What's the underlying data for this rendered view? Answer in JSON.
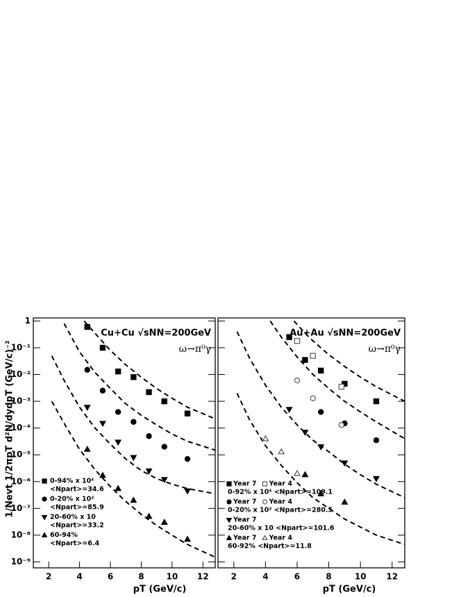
{
  "chart_data": [
    {
      "type": "scatter",
      "title": "Cu+Cu √sNN=200GeV",
      "subtitle": "ω→π⁰γ",
      "y_label": "1/Nevt 1/2πpT d²N/dydpT (GeV/c)⁻²",
      "x_label": "pT (GeV/c)",
      "log_y": true,
      "xlim": [
        1,
        12.8
      ],
      "ylim": [
        6e-10,
        1.3
      ],
      "xticks": [
        2,
        4,
        6,
        8,
        10,
        12
      ],
      "yticks": [
        {
          "value": 1e-09,
          "label": "10⁻⁹"
        },
        {
          "value": 1e-08,
          "label": "10⁻⁸"
        },
        {
          "value": 1e-07,
          "label": "10⁻⁷"
        },
        {
          "value": 1e-06,
          "label": "10⁻⁶"
        },
        {
          "value": 1e-05,
          "label": "10⁻⁵"
        },
        {
          "value": 0.0001,
          "label": "10⁻⁴"
        },
        {
          "value": 0.001,
          "label": "10⁻³"
        },
        {
          "value": 0.01,
          "label": "10⁻²"
        },
        {
          "value": 0.1,
          "label": "10⁻¹"
        },
        1
      ],
      "legend_groups": [
        {
          "lines": [
            "0-94% x 10⁴",
            "<Npart>=34.6"
          ]
        },
        {
          "lines": [
            "0-20% x 10²",
            "<Npart>=85.9"
          ]
        },
        {
          "lines": [
            "20-60% x 10",
            "<Npart>=33.2"
          ]
        },
        {
          "lines": [
            "60-94%",
            "<Npart>=6.4"
          ]
        }
      ],
      "series": [
        {
          "group": 0,
          "marker": "square",
          "filled": true,
          "color": "#000000",
          "x": [
            4.5,
            5.5,
            6.5,
            7.5,
            8.5,
            9.5,
            11
          ],
          "values": [
            0.6,
            0.1,
            0.013,
            0.008,
            0.0022,
            0.001,
            0.00035
          ]
        },
        {
          "group": 1,
          "marker": "circle",
          "filled": true,
          "color": "#000000",
          "x": [
            4.5,
            5.5,
            6.5,
            7.5,
            8.5,
            9.5,
            11
          ],
          "values": [
            0.015,
            0.0025,
            0.0004,
            0.00017,
            5e-05,
            2e-05,
            7e-06
          ]
        },
        {
          "group": 2,
          "marker": "triangle-down",
          "filled": true,
          "color": "#000000",
          "x": [
            4.5,
            5.5,
            6.5,
            7.5,
            8.5,
            9.5,
            11
          ],
          "values": [
            0.0006,
            0.00015,
            3e-05,
            8e-06,
            2.5e-06,
            1.2e-06,
            4.5e-07
          ]
        },
        {
          "group": 3,
          "marker": "triangle-up",
          "filled": true,
          "color": "#000000",
          "x": [
            4.5,
            5.5,
            6.5,
            7.5,
            8.5,
            9.5,
            11
          ],
          "values": [
            1.6e-05,
            1.7e-06,
            5.5e-07,
            2e-07,
            5e-08,
            3e-08,
            7e-09
          ]
        }
      ],
      "curves": [
        {
          "x": [
            4.3,
            5,
            6,
            7,
            8,
            9,
            10,
            11,
            12.8
          ],
          "values": [
            1,
            0.35,
            0.08,
            0.023,
            0.008,
            0.003,
            0.0013,
            0.0006,
            0.00022
          ]
        },
        {
          "x": [
            3,
            4,
            5,
            6,
            7,
            8,
            9,
            10,
            11,
            12.8
          ],
          "values": [
            0.8,
            0.07,
            0.012,
            0.003,
            0.0008,
            0.0003,
            0.00013,
            6e-05,
            3.2e-05,
            1.5e-05
          ]
        },
        {
          "x": [
            2.2,
            3,
            4,
            5,
            6,
            7,
            8,
            9,
            10,
            11,
            12.8
          ],
          "values": [
            0.05,
            0.006,
            0.0006,
            0.0001,
            2.5e-05,
            7e-06,
            2.6e-06,
            1.3e-06,
            8e-07,
            5.5e-07,
            3.5e-07
          ]
        },
        {
          "x": [
            2.2,
            3,
            4,
            5,
            6,
            7,
            8,
            9,
            10,
            11,
            12.8
          ],
          "values": [
            0.001,
            0.00015,
            1.6e-05,
            2.8e-06,
            6.5e-07,
            1.8e-07,
            6e-08,
            2.3e-08,
            1e-08,
            4.5e-09,
            1.5e-09
          ]
        }
      ]
    },
    {
      "type": "scatter",
      "title": "Au+Au √sNN=200GeV",
      "subtitle": "ω→π⁰γ",
      "x_label": "pT (GeV/c)",
      "log_y": true,
      "xlim": [
        1,
        12.8
      ],
      "ylim": [
        6e-10,
        1.3
      ],
      "xticks": [
        2,
        4,
        6,
        8,
        10,
        12
      ],
      "legend_groups": [
        {
          "lines": [
            "0-92% x 10⁴ <Npart>=109.1"
          ]
        },
        {
          "lines": [
            "0-20% x 10² <Npart>=280.5"
          ]
        },
        {
          "lines": [
            "20-60% x 10 <Npart>=101.6"
          ]
        },
        {
          "lines": [
            "60-92% <Npart>=11.8"
          ]
        }
      ],
      "series": [
        {
          "name": "Year 7",
          "group": 0,
          "marker": "square",
          "filled": true,
          "color": "#000000",
          "x": [
            5.5,
            6.5,
            7.5,
            9,
            11
          ],
          "values": [
            0.25,
            0.035,
            0.014,
            0.0045,
            0.001
          ]
        },
        {
          "name": "Year 4",
          "group": 0,
          "marker": "square",
          "filled": false,
          "color": "#555555",
          "x": [
            6,
            7,
            8.8
          ],
          "values": [
            0.18,
            0.05,
            0.0035
          ]
        },
        {
          "name": "Year 7",
          "group": 1,
          "marker": "circle",
          "filled": true,
          "color": "#000000",
          "x": [
            7.5,
            9,
            11
          ],
          "values": [
            0.0004,
            0.00015,
            3.5e-05
          ]
        },
        {
          "name": "Year 4",
          "group": 1,
          "marker": "circle",
          "filled": false,
          "color": "#555555",
          "x": [
            6,
            7,
            8.8
          ],
          "values": [
            0.006,
            0.0013,
            0.00013
          ]
        },
        {
          "name": "Year 7",
          "group": 2,
          "marker": "triangle-down",
          "filled": true,
          "color": "#000000",
          "x": [
            5.5,
            6.5,
            7.5,
            9,
            11
          ],
          "values": [
            0.0005,
            7e-05,
            2e-05,
            5e-06,
            1.3e-06
          ]
        },
        {
          "name": "Year 7",
          "group": 3,
          "marker": "triangle-up",
          "filled": true,
          "color": "#000000",
          "x": [
            6.5,
            7.5,
            9
          ],
          "values": [
            1.8e-06,
            3.5e-07,
            1.7e-07
          ]
        },
        {
          "name": "Year 4",
          "group": 3,
          "marker": "triangle-up",
          "filled": false,
          "color": "#555555",
          "x": [
            4,
            5,
            6
          ],
          "values": [
            4e-05,
            1.3e-05,
            2e-06
          ]
        }
      ],
      "curves": [
        {
          "x": [
            5.8,
            6.5,
            7,
            8,
            9,
            10,
            11,
            12.8
          ],
          "values": [
            1,
            0.35,
            0.18,
            0.055,
            0.02,
            0.008,
            0.0035,
            0.001
          ]
        },
        {
          "x": [
            4.3,
            5,
            6,
            7,
            8,
            9,
            10,
            11,
            12.8
          ],
          "values": [
            1,
            0.25,
            0.045,
            0.01,
            0.003,
            0.001,
            0.0004,
            0.00017,
            4e-05
          ]
        },
        {
          "x": [
            2.2,
            3,
            4,
            5,
            6,
            7,
            8,
            9,
            10,
            11,
            12.8
          ],
          "values": [
            0.4,
            0.04,
            0.004,
            0.0006,
            0.00013,
            3.5e-05,
            1.3e-05,
            4.5e-06,
            1.8e-06,
            8e-07,
            2.5e-07
          ]
        },
        {
          "x": [
            2.2,
            3,
            4,
            5,
            6,
            7,
            8,
            9,
            10,
            11,
            12.8
          ],
          "values": [
            0.002,
            0.0002,
            2.2e-05,
            4e-06,
            9e-07,
            2.5e-07,
            1e-07,
            4e-08,
            2e-08,
            1e-08,
            4.5e-09
          ]
        }
      ]
    }
  ]
}
